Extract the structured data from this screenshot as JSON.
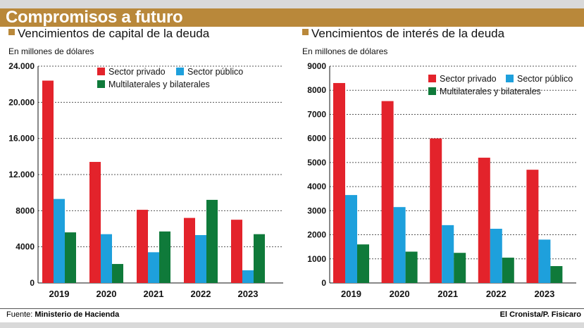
{
  "header": {
    "title": "Compromisos a futuro"
  },
  "footer": {
    "source_label": "Fuente:",
    "source_value": "Ministerio de Hacienda",
    "credit": "El Cronista/P. Fisicaro"
  },
  "colors": {
    "sector_privado": "#e3232b",
    "sector_publico": "#1ea0dc",
    "multilaterales": "#0f7a3a",
    "accent": "#b9883a"
  },
  "chart_data": [
    {
      "type": "bar",
      "title": "Vencimientos de capital de la deuda",
      "subtitle": "En millones de dólares",
      "categories": [
        "2019",
        "2020",
        "2021",
        "2022",
        "2023"
      ],
      "series": [
        {
          "name": "Sector privado",
          "values": [
            22400,
            13400,
            8100,
            7200,
            7000
          ]
        },
        {
          "name": "Sector público",
          "values": [
            9300,
            5400,
            3400,
            5300,
            1400
          ]
        },
        {
          "name": "Multilaterales y bilaterales",
          "values": [
            5600,
            2100,
            5700,
            9200,
            5400
          ]
        }
      ],
      "ylim": [
        0,
        24000
      ],
      "yticks": [
        0,
        4000,
        8000,
        12000,
        16000,
        20000,
        24000
      ],
      "ytick_labels": [
        "0",
        "4000",
        "8000",
        "12.000",
        "16.000",
        "20.000",
        "24.000"
      ],
      "grid": true,
      "legend": "top-right"
    },
    {
      "type": "bar",
      "title": "Vencimientos de interés de la deuda",
      "subtitle": "En millones de dólares",
      "categories": [
        "2019",
        "2020",
        "2021",
        "2022",
        "2023"
      ],
      "series": [
        {
          "name": "Sector privado",
          "values": [
            8300,
            7550,
            6000,
            5200,
            4700
          ]
        },
        {
          "name": "Sector público",
          "values": [
            3650,
            3150,
            2400,
            2250,
            1800
          ]
        },
        {
          "name": "Multilaterales y bilaterales",
          "values": [
            1600,
            1300,
            1250,
            1050,
            700
          ]
        }
      ],
      "ylim": [
        0,
        9000
      ],
      "yticks": [
        0,
        1000,
        2000,
        3000,
        4000,
        5000,
        6000,
        7000,
        8000,
        9000
      ],
      "ytick_labels": [
        "0",
        "1000",
        "2000",
        "3000",
        "4000",
        "5000",
        "6000",
        "7000",
        "8000",
        "9000"
      ],
      "grid": true,
      "legend": "top-right"
    }
  ]
}
